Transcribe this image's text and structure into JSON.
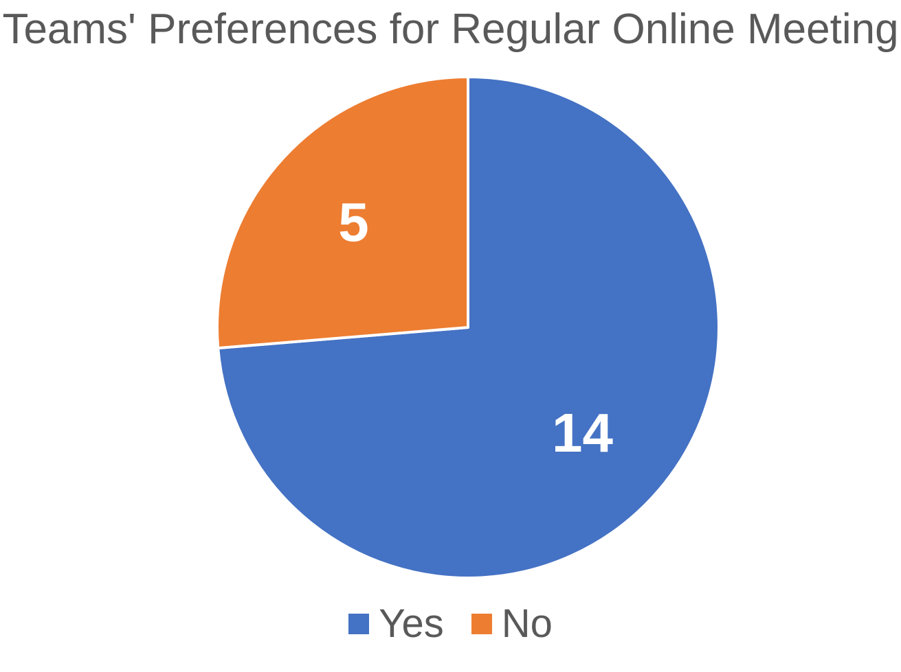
{
  "chart_data": {
    "type": "pie",
    "title": "Teams' Preferences for Regular Online Meeting",
    "categories": [
      "Yes",
      "No"
    ],
    "values": [
      14,
      5
    ],
    "colors": [
      "#4472c4",
      "#ed7d31"
    ],
    "data_labels": [
      "14",
      "5"
    ],
    "start_angle_deg": 0,
    "direction": "clockwise",
    "legend_position": "bottom"
  },
  "legend": {
    "items": [
      {
        "label": "Yes",
        "color": "#4472c4"
      },
      {
        "label": "No",
        "color": "#ed7d31"
      }
    ]
  }
}
